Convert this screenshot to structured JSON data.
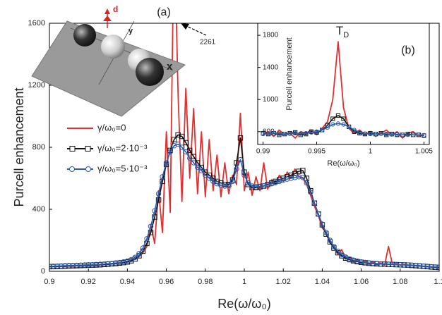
{
  "chart_data": [
    {
      "type": "line",
      "panel_label": "(a)",
      "xlabel": "Re(ω/ω₀)",
      "ylabel": "Purcell enhancement",
      "annotation": "2261",
      "xlim": [
        0.9,
        1.1
      ],
      "xticks": [
        0.9,
        0.92,
        0.94,
        0.96,
        0.98,
        1,
        1.02,
        1.04,
        1.06,
        1.08,
        1.1
      ],
      "ylim": [
        0,
        1600
      ],
      "yticks": [
        0,
        400,
        800,
        1200,
        1600
      ],
      "x": [
        0.9,
        0.902,
        0.904,
        0.906,
        0.908,
        0.91,
        0.912,
        0.914,
        0.916,
        0.918,
        0.92,
        0.922,
        0.924,
        0.926,
        0.928,
        0.93,
        0.932,
        0.934,
        0.936,
        0.938,
        0.94,
        0.942,
        0.944,
        0.946,
        0.948,
        0.95,
        0.952,
        0.954,
        0.956,
        0.958,
        0.96,
        0.962,
        0.964,
        0.966,
        0.968,
        0.97,
        0.972,
        0.974,
        0.976,
        0.978,
        0.98,
        0.982,
        0.984,
        0.986,
        0.988,
        0.99,
        0.992,
        0.994,
        0.996,
        0.998,
        1,
        1.002,
        1.004,
        1.006,
        1.008,
        1.01,
        1.012,
        1.014,
        1.016,
        1.018,
        1.02,
        1.022,
        1.024,
        1.026,
        1.028,
        1.03,
        1.032,
        1.034,
        1.036,
        1.038,
        1.04,
        1.042,
        1.044,
        1.046,
        1.048,
        1.05,
        1.052,
        1.054,
        1.056,
        1.058,
        1.06,
        1.062,
        1.064,
        1.066,
        1.068,
        1.07,
        1.072,
        1.074,
        1.076,
        1.078,
        1.08,
        1.082,
        1.084,
        1.086,
        1.088,
        1.09,
        1.092,
        1.094,
        1.096,
        1.098,
        1.1
      ],
      "series": [
        {
          "name": "γ/ω₀=0",
          "color": "#e03030",
          "marker": "none",
          "values": [
            30,
            32,
            30,
            33,
            31,
            35,
            33,
            36,
            35,
            38,
            37,
            40,
            39,
            42,
            43,
            45,
            47,
            50,
            55,
            57,
            62,
            70,
            78,
            95,
            120,
            160,
            300,
            180,
            520,
            250,
            900,
            380,
            2261,
            1150,
            450,
            1180,
            600,
            1050,
            500,
            900,
            480,
            850,
            520,
            750,
            480,
            700,
            500,
            620,
            560,
            1020,
            520,
            640,
            490,
            610,
            520,
            700,
            530,
            590,
            560,
            620,
            580,
            640,
            600,
            660,
            610,
            600,
            560,
            490,
            420,
            360,
            280,
            250,
            180,
            160,
            110,
            140,
            80,
            90,
            60,
            75,
            50,
            65,
            45,
            60,
            42,
            55,
            40,
            160,
            45,
            50,
            40,
            45,
            38,
            40,
            35,
            36,
            32,
            30,
            28,
            26,
            25
          ]
        },
        {
          "name": "γ/ω₀=2·10⁻³",
          "color": "#111111",
          "marker": "square",
          "values": [
            30,
            30,
            31,
            32,
            33,
            34,
            35,
            36,
            37,
            38,
            39,
            40,
            41,
            42,
            44,
            46,
            48,
            50,
            53,
            56,
            60,
            68,
            80,
            100,
            130,
            180,
            250,
            350,
            460,
            580,
            690,
            780,
            850,
            880,
            870,
            830,
            780,
            740,
            700,
            670,
            640,
            620,
            600,
            580,
            570,
            560,
            560,
            590,
            700,
            860,
            640,
            560,
            540,
            540,
            545,
            550,
            560,
            570,
            580,
            590,
            600,
            610,
            620,
            630,
            645,
            650,
            600,
            520,
            440,
            370,
            300,
            240,
            190,
            150,
            120,
            100,
            85,
            75,
            68,
            62,
            58,
            55,
            52,
            50,
            48,
            47,
            46,
            45,
            44,
            43,
            42,
            41,
            40,
            38,
            36,
            34,
            32,
            30,
            28,
            26,
            25
          ]
        },
        {
          "name": "γ/ω₀=5·10⁻³",
          "color": "#2a5db0",
          "marker": "circle",
          "values": [
            32,
            33,
            34,
            35,
            36,
            37,
            38,
            39,
            40,
            41,
            42,
            43,
            44,
            45,
            47,
            49,
            51,
            54,
            57,
            61,
            66,
            75,
            90,
            115,
            150,
            210,
            290,
            390,
            500,
            610,
            700,
            770,
            810,
            820,
            800,
            770,
            730,
            700,
            670,
            650,
            620,
            600,
            580,
            565,
            555,
            550,
            555,
            580,
            660,
            720,
            620,
            570,
            550,
            545,
            548,
            552,
            558,
            565,
            572,
            580,
            588,
            595,
            600,
            605,
            610,
            605,
            570,
            510,
            440,
            370,
            305,
            250,
            200,
            160,
            130,
            108,
            92,
            80,
            72,
            66,
            61,
            57,
            54,
            52,
            50,
            48,
            47,
            46,
            45,
            44,
            43,
            42,
            41,
            40,
            38,
            36,
            34,
            32,
            30,
            28,
            27
          ]
        }
      ]
    },
    {
      "type": "line",
      "panel_label": "(b)",
      "title": "T",
      "title_sub": "D",
      "xlabel": "Re(ω/ω₀)",
      "ylabel": "Purcell enhancement",
      "xlim": [
        0.9895,
        1.0055
      ],
      "xticks": [
        0.99,
        0.995,
        1,
        1.005
      ],
      "ylim": [
        440,
        1950
      ],
      "yticks": [
        600,
        1000,
        1400,
        1800
      ],
      "x": [
        0.99,
        0.9905,
        0.991,
        0.9915,
        0.992,
        0.9925,
        0.993,
        0.9935,
        0.994,
        0.9945,
        0.995,
        0.9955,
        0.996,
        0.9965,
        0.997,
        0.9975,
        0.998,
        0.9985,
        0.999,
        0.9995,
        1,
        1.0005,
        1.001,
        1.0015,
        1.002,
        1.0025,
        1.003,
        1.0035,
        1.004,
        1.0045,
        1.005
      ],
      "series": [
        {
          "color": "#e03030",
          "marker": "none",
          "values": [
            560,
            600,
            540,
            620,
            560,
            580,
            520,
            600,
            580,
            620,
            560,
            640,
            720,
            1000,
            1720,
            900,
            640,
            580,
            620,
            560,
            600,
            540,
            580,
            620,
            560,
            600,
            520,
            580,
            600,
            540,
            560
          ]
        },
        {
          "color": "#111111",
          "marker": "square",
          "values": [
            580,
            570,
            580,
            560,
            570,
            580,
            590,
            560,
            570,
            600,
            590,
            620,
            680,
            760,
            800,
            760,
            660,
            600,
            580,
            570,
            580,
            570,
            580,
            560,
            570,
            560,
            560,
            570,
            560,
            560,
            550
          ]
        },
        {
          "color": "#2a5db0",
          "marker": "circle",
          "values": [
            570,
            575,
            580,
            575,
            570,
            575,
            580,
            575,
            580,
            590,
            600,
            620,
            650,
            690,
            700,
            690,
            660,
            620,
            590,
            575,
            570,
            570,
            575,
            570,
            565,
            565,
            560,
            560,
            560,
            560,
            555
          ]
        }
      ]
    }
  ],
  "schematic": {
    "d": "d",
    "y": "y",
    "x": "x"
  }
}
